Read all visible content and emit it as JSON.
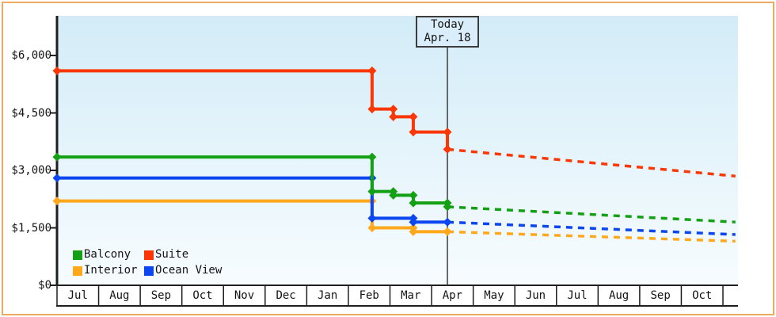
{
  "chart_data": {
    "type": "line",
    "description": "Stepped price-history lines per cabin category with dashed projected prices after today marker",
    "x_unit": "months_from_first_jul",
    "x_axis": {
      "labels": [
        "Jul",
        "Aug",
        "Sep",
        "Oct",
        "Nov",
        "Dec",
        "Jan",
        "Feb",
        "Mar",
        "Apr",
        "May",
        "Jun",
        "Jul",
        "Aug",
        "Sep",
        "Oct"
      ],
      "xlim_months": [
        0,
        16.36
      ]
    },
    "y_axis": {
      "range": [
        0,
        6000
      ],
      "ticks": [
        {
          "value": 0,
          "label": "$0"
        },
        {
          "value": 1500,
          "label": "$1,500"
        },
        {
          "value": 3000,
          "label": "$3,000"
        },
        {
          "value": 4500,
          "label": "$4,500"
        },
        {
          "value": 6000,
          "label": "$6,000"
        }
      ]
    },
    "today_marker": {
      "line1": "Today",
      "line2": "Apr. 18",
      "x_months": 9.38
    },
    "series": [
      {
        "name": "Interior",
        "color": "#ffa81c",
        "solid_points": [
          [
            0,
            2200
          ],
          [
            7.57,
            2200
          ],
          [
            7.57,
            1500
          ],
          [
            8.56,
            1500
          ],
          [
            8.56,
            1400
          ],
          [
            9.38,
            1400
          ]
        ],
        "projected_points": [
          [
            9.38,
            1400
          ],
          [
            16.3,
            1150
          ]
        ]
      },
      {
        "name": "Ocean View",
        "color": "#0b46ee",
        "solid_points": [
          [
            0,
            2800
          ],
          [
            7.57,
            2800
          ],
          [
            7.57,
            1750
          ],
          [
            8.56,
            1750
          ],
          [
            8.56,
            1650
          ],
          [
            9.38,
            1650
          ]
        ],
        "projected_points": [
          [
            9.38,
            1650
          ],
          [
            16.3,
            1325
          ]
        ]
      },
      {
        "name": "Balcony",
        "color": "#14a014",
        "solid_points": [
          [
            0,
            3350
          ],
          [
            7.57,
            3350
          ],
          [
            7.57,
            2450
          ],
          [
            8.08,
            2450
          ],
          [
            8.08,
            2350
          ],
          [
            8.56,
            2350
          ],
          [
            8.56,
            2150
          ],
          [
            9.38,
            2150
          ],
          [
            9.38,
            2050
          ]
        ],
        "projected_points": [
          [
            9.38,
            2050
          ],
          [
            16.3,
            1650
          ]
        ]
      },
      {
        "name": "Suite",
        "color": "#fa3705",
        "solid_points": [
          [
            0,
            5600
          ],
          [
            7.57,
            5600
          ],
          [
            7.57,
            4600
          ],
          [
            8.08,
            4600
          ],
          [
            8.08,
            4400
          ],
          [
            8.56,
            4400
          ],
          [
            8.56,
            4000
          ],
          [
            9.38,
            4000
          ],
          [
            9.38,
            3550
          ]
        ],
        "projected_points": [
          [
            9.38,
            3550
          ],
          [
            16.3,
            2850
          ]
        ]
      }
    ],
    "legend": {
      "position": "bottom-left",
      "rows": [
        [
          "Balcony",
          "Suite"
        ],
        [
          "Interior",
          "Ocean View"
        ]
      ]
    },
    "style": {
      "plot_bg_top": "#d3ecf8",
      "plot_bg_bottom": "#f7fcfe",
      "frame_border": "#ecaa60",
      "axis_color": "#1f1f1f",
      "today_line_color": "#3c3c3c",
      "today_box_fill": "#d9eefa",
      "projected_line_style": "dashed"
    }
  }
}
